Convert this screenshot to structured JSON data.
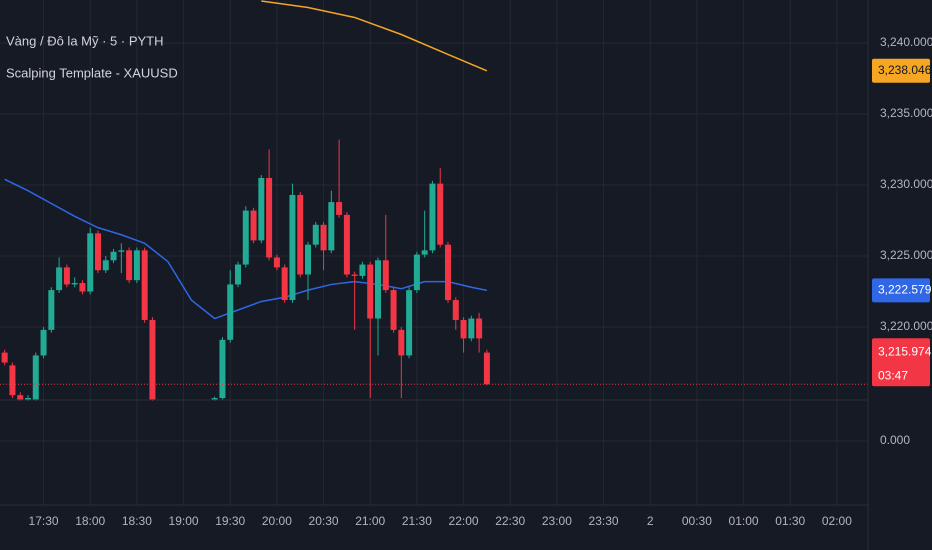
{
  "chart_data": {
    "type": "candlestick",
    "title": "Vàng / Đô la Mỹ · 5 · PYTH",
    "subtitle": "Scalping Template - XAUUSD",
    "ylim": [
      3207.82,
      3243.03
    ],
    "yticks": [
      {
        "value": 3220,
        "label": "3,220.000"
      },
      {
        "value": 3225,
        "label": "3,225.000"
      },
      {
        "value": 3230,
        "label": "3,230.000"
      },
      {
        "value": 3235,
        "label": "3,235.000"
      },
      {
        "value": 3240,
        "label": "3,240.000"
      }
    ],
    "indicator_ticks": [
      {
        "value": 0,
        "label": "0.000"
      }
    ],
    "xlim": [
      "17:02",
      "02:20"
    ],
    "xticks": [
      "17:30",
      "18:00",
      "18:30",
      "19:00",
      "19:30",
      "20:00",
      "20:30",
      "21:00",
      "21:30",
      "22:00",
      "22:30",
      "23:00",
      "23:30",
      {
        "value": "00:00",
        "label": "2"
      },
      "00:30",
      "01:00",
      "01:30",
      "02:00"
    ],
    "grid": true,
    "candles": {
      "up_color": "#22ab94",
      "down_color": "#f23645",
      "x": [
        "17:05",
        "17:10",
        "17:15",
        "17:20",
        "17:25",
        "17:30",
        "17:35",
        "17:40",
        "17:45",
        "17:50",
        "17:55",
        "18:00",
        "18:05",
        "18:10",
        "18:15",
        "18:20",
        "18:25",
        "18:30",
        "18:35",
        "18:40",
        "19:20",
        "19:25",
        "19:30",
        "19:35",
        "19:40",
        "19:45",
        "19:50",
        "19:55",
        "20:00",
        "20:05",
        "20:10",
        "20:15",
        "20:20",
        "20:25",
        "20:30",
        "20:35",
        "20:40",
        "20:45",
        "20:50",
        "20:55",
        "21:00",
        "21:05",
        "21:10",
        "21:15",
        "21:20",
        "21:25",
        "21:30",
        "21:35",
        "21:40",
        "21:45",
        "21:50",
        "21:55",
        "22:00",
        "22:05",
        "22:10",
        "22:15"
      ],
      "open": [
        3218.2,
        3217.3,
        3215.2,
        3214.9,
        3214.9,
        3218.0,
        3219.8,
        3222.6,
        3224.2,
        3223.0,
        3223.1,
        3222.5,
        3226.6,
        3224.0,
        3224.7,
        3225.3,
        3225.4,
        3223.3,
        3225.4,
        3220.5,
        3214.9,
        3215.0,
        3219.1,
        3223.0,
        3224.4,
        3228.2,
        3226.1,
        3230.5,
        3224.9,
        3224.2,
        3221.9,
        3229.3,
        3223.7,
        3225.8,
        3227.2,
        3225.4,
        3228.8,
        3227.9,
        3223.7,
        3223.6,
        3224.4,
        3220.6,
        3224.7,
        3222.6,
        3219.8,
        3218.0,
        3222.6,
        3225.1,
        3225.4,
        3230.1,
        3225.8,
        3221.9,
        3220.5,
        3219.2,
        3220.6,
        3218.2
      ],
      "high": [
        3218.4,
        3217.5,
        3215.4,
        3215.2,
        3218.2,
        3220.0,
        3222.8,
        3224.9,
        3224.4,
        3223.5,
        3223.3,
        3227.0,
        3226.8,
        3225.0,
        3225.5,
        3225.9,
        3225.6,
        3225.6,
        3225.6,
        3220.7,
        3215.1,
        3219.3,
        3224.0,
        3224.6,
        3228.5,
        3228.4,
        3230.7,
        3232.5,
        3225.1,
        3224.4,
        3230.1,
        3229.5,
        3226.0,
        3227.4,
        3227.4,
        3229.6,
        3233.2,
        3228.1,
        3223.9,
        3224.6,
        3224.6,
        3224.9,
        3227.9,
        3222.8,
        3220.0,
        3222.8,
        3225.3,
        3228.2,
        3230.3,
        3231.2,
        3226.0,
        3222.1,
        3220.7,
        3220.8,
        3221.0,
        3218.4
      ],
      "low": [
        3217.3,
        3215.0,
        3214.8,
        3214.8,
        3214.8,
        3217.8,
        3219.6,
        3222.4,
        3222.8,
        3222.8,
        3222.3,
        3222.3,
        3223.8,
        3223.8,
        3224.5,
        3223.8,
        3223.1,
        3223.1,
        3220.3,
        3214.8,
        3214.8,
        3214.9,
        3218.9,
        3222.8,
        3224.2,
        3225.9,
        3225.9,
        3224.7,
        3224.0,
        3221.7,
        3221.7,
        3223.5,
        3221.9,
        3225.6,
        3224.0,
        3225.2,
        3227.7,
        3223.5,
        3219.8,
        3223.4,
        3215.0,
        3218.0,
        3222.4,
        3219.6,
        3215.0,
        3217.8,
        3222.4,
        3224.9,
        3225.2,
        3225.6,
        3221.7,
        3219.8,
        3218.2,
        3219.0,
        3218.2,
        3215.9
      ],
      "close": [
        3217.5,
        3215.2,
        3214.9,
        3215.0,
        3218.0,
        3219.8,
        3222.6,
        3224.2,
        3223.0,
        3223.1,
        3222.5,
        3226.6,
        3224.0,
        3224.7,
        3225.3,
        3225.4,
        3223.3,
        3225.4,
        3220.5,
        3214.9,
        3215.0,
        3219.1,
        3223.0,
        3224.4,
        3228.2,
        3226.1,
        3230.5,
        3224.9,
        3224.2,
        3221.9,
        3229.3,
        3223.7,
        3225.8,
        3227.2,
        3225.4,
        3228.8,
        3227.9,
        3223.7,
        3223.6,
        3224.4,
        3220.6,
        3224.7,
        3222.6,
        3219.8,
        3218.0,
        3222.6,
        3225.1,
        3225.4,
        3230.1,
        3225.8,
        3221.9,
        3220.5,
        3219.2,
        3220.6,
        3219.2,
        3215.974
      ],
      "last_close_label": "3,215.974",
      "countdown": "03:47"
    },
    "series": [
      {
        "color": "#2f67e6",
        "x": [
          "17:05",
          "17:20",
          "17:35",
          "17:50",
          "18:05",
          "18:20",
          "18:35",
          "18:50",
          "19:05",
          "19:20",
          "19:35",
          "19:50",
          "20:05",
          "20:20",
          "20:35",
          "20:50",
          "21:05",
          "21:20",
          "21:35",
          "21:50",
          "22:05",
          "22:15"
        ],
        "values": [
          3230.4,
          3229.6,
          3228.7,
          3227.8,
          3227.0,
          3226.5,
          3225.9,
          3224.6,
          3221.9,
          3220.6,
          3221.2,
          3221.8,
          3222.1,
          3222.6,
          3223.0,
          3223.2,
          3223.0,
          3222.7,
          3223.2,
          3223.2,
          3222.8,
          3222.579
        ],
        "value_labels": [
          null,
          null,
          null,
          null,
          null,
          null,
          null,
          null,
          null,
          null,
          null,
          null,
          null,
          null,
          null,
          null,
          null,
          null,
          null,
          null,
          null,
          "3,222.579"
        ]
      },
      {
        "color": "#f5a623",
        "x": [
          "19:50",
          "20:20",
          "20:50",
          "21:20",
          "21:50",
          "22:15"
        ],
        "values": [
          3242.96,
          3242.5,
          3241.8,
          3240.6,
          3239.2,
          3238.046
        ],
        "value_labels": [
          null,
          null,
          null,
          null,
          null,
          "3,238.046"
        ]
      }
    ]
  }
}
